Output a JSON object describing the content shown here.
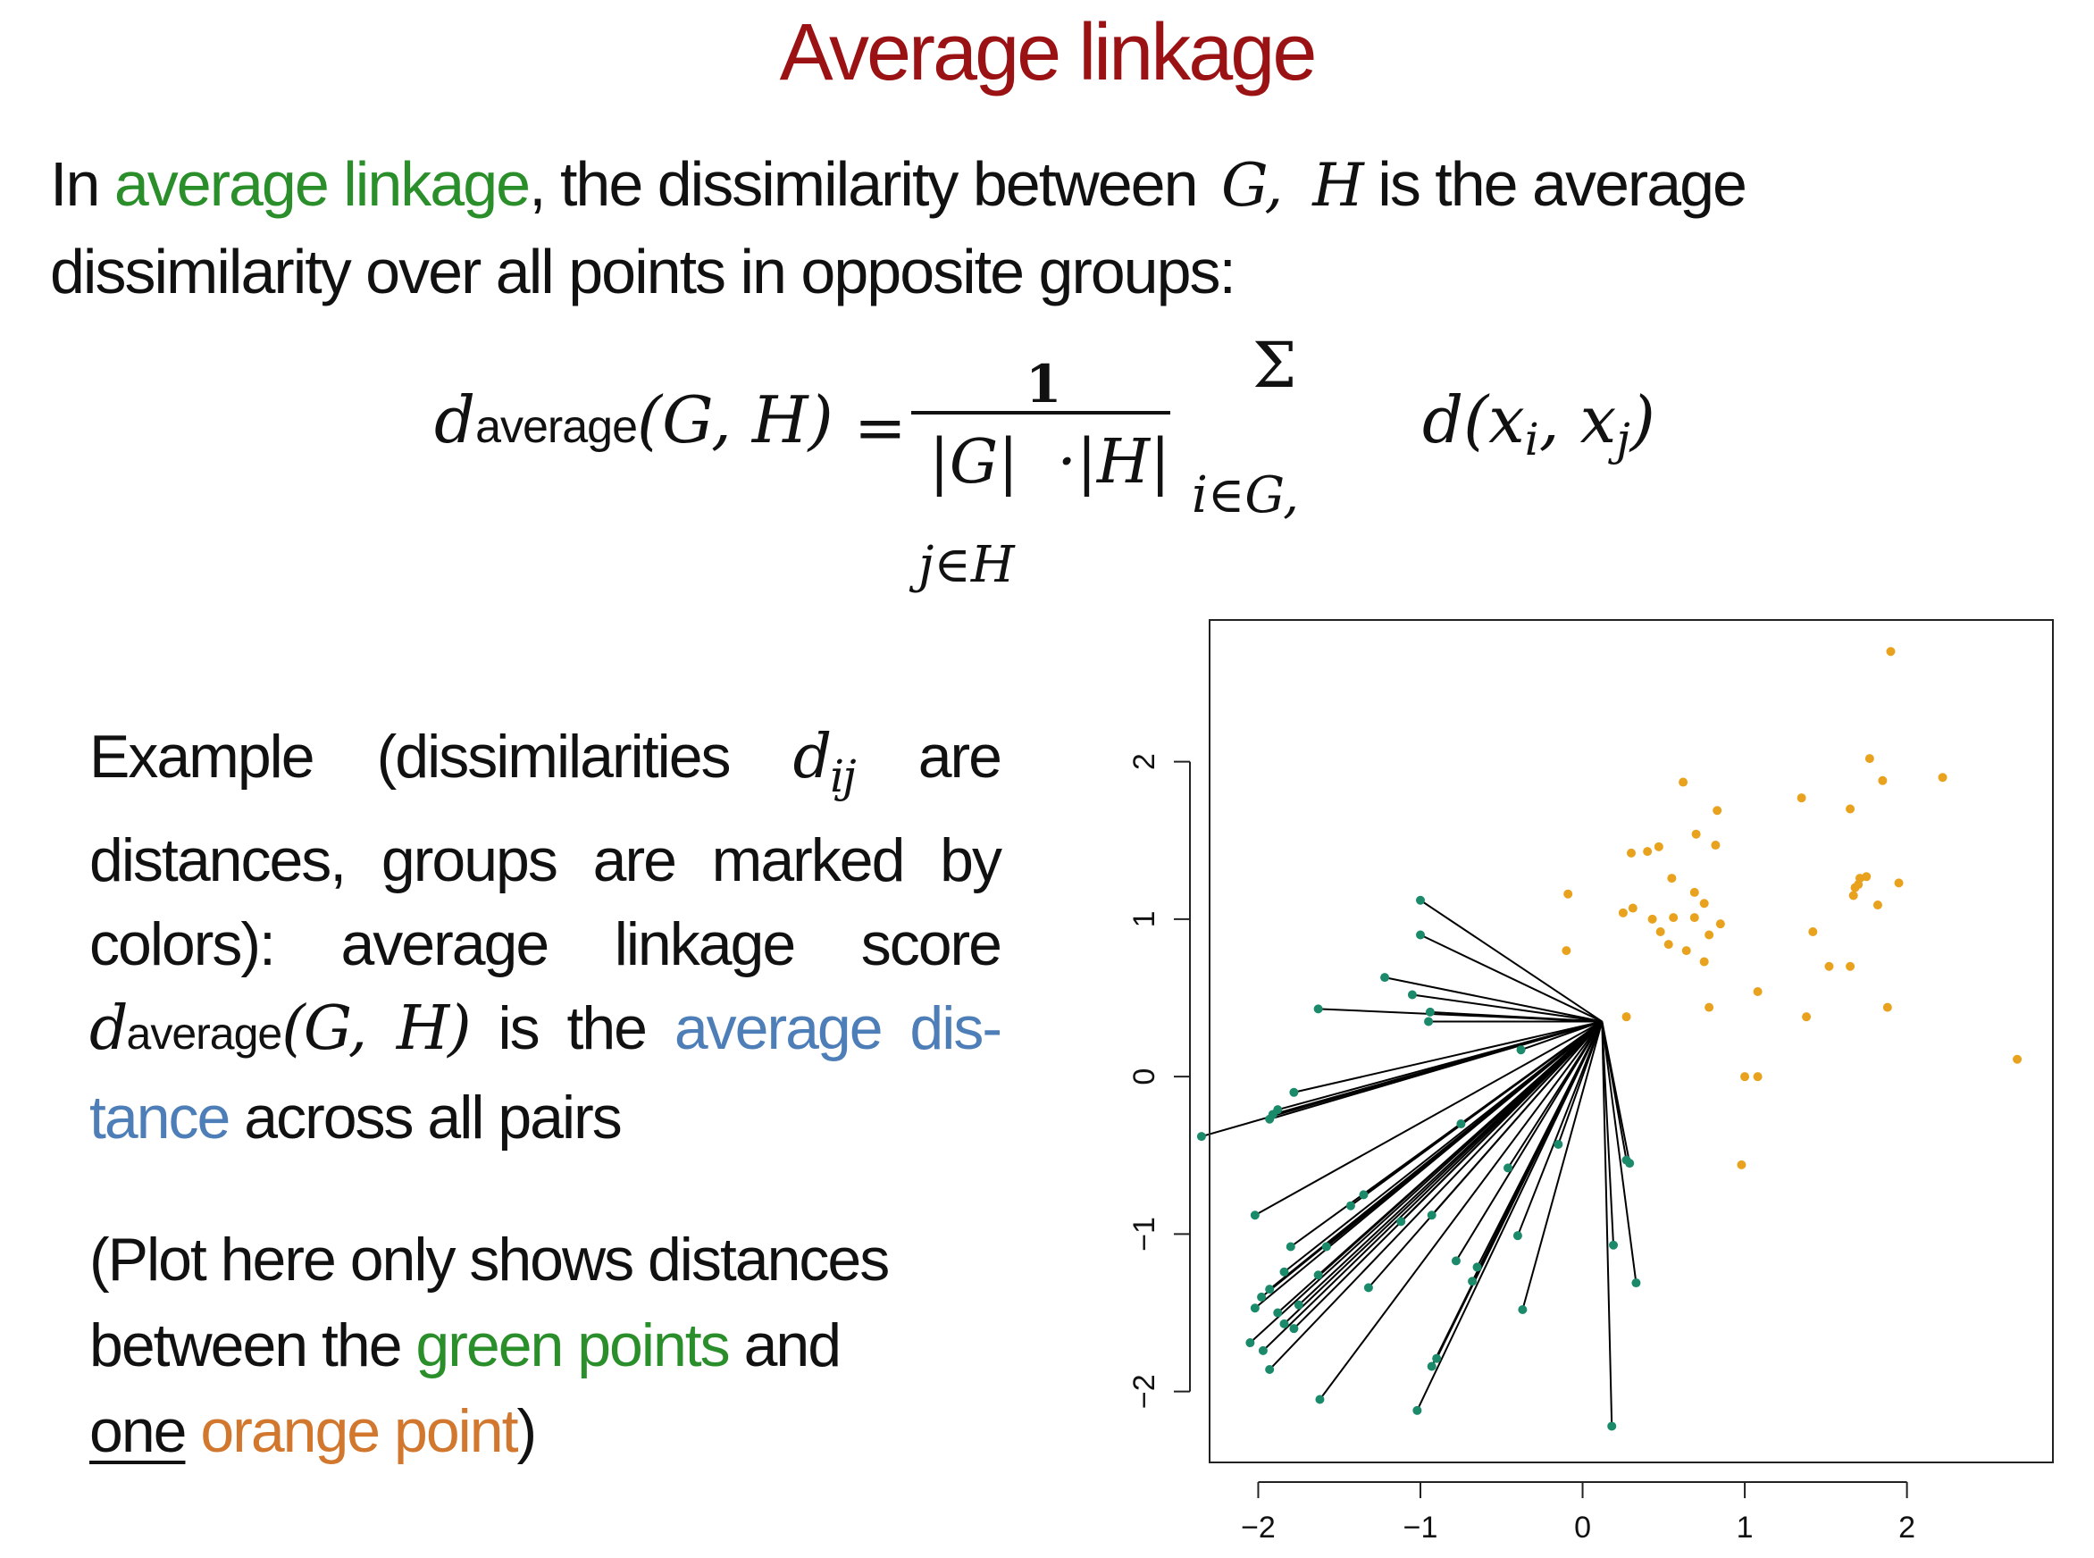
{
  "title": "Average linkage",
  "intro": {
    "p1": "In ",
    "term": "average linkage",
    "p2": ", the dissimilarity between ",
    "var_g": "G,",
    "var_h": "H",
    "p3": " is the average",
    "line2": "dissimilarity over all points in opposite  groups:"
  },
  "formula": {
    "lhs_d": "d",
    "lhs_sub": "average",
    "lhs_args": "(G, H)",
    "equals": "=",
    "numerator": "1",
    "denominator": "|G|  ·|H|",
    "sum_symbol": "Σ",
    "sum_index_i": "i∈G,",
    "sum_index_j": "j∈H",
    "term": "d(x",
    "term_i": "i",
    "term_mid": ", x",
    "term_j": "j",
    "term_close": ")"
  },
  "example": {
    "p1": "Example (dissimilarities ",
    "dij_d": "d",
    "dij_sub": "ij",
    "p2": " are distances, groups are marked by colors): average linkage score ",
    "d": "d",
    "d_sub": "average",
    "args": "(G, H)",
    "p3": " is the ",
    "highlight": "average dis-tance",
    "p4": " across all  pairs"
  },
  "note": {
    "p1": "(Plot here only shows distances between the ",
    "green": "green points",
    "p2": " and ",
    "one": "one",
    "p3": " ",
    "orange": "orange point",
    "p4": ")"
  },
  "colors": {
    "title": "#9b1214",
    "green_text": "#2a8f2a",
    "blue_text": "#4d7eb8",
    "orange_text": "#d2772e",
    "green_point": "#1a8a6a",
    "orange_point": "#e8a21d",
    "line": "#000000"
  },
  "chart_data": {
    "type": "scatter",
    "title": "",
    "xlabel": "",
    "ylabel": "",
    "xlim": [
      -2.3,
      2.9
    ],
    "ylim": [
      -2.45,
      2.9
    ],
    "xticks": [
      -2,
      -1,
      0,
      1,
      2
    ],
    "yticks": [
      -2,
      -1,
      0,
      1,
      2
    ],
    "xtick_labels": [
      "−2",
      "−1",
      "0",
      "1",
      "2"
    ],
    "ytick_labels": [
      "−2",
      "−1",
      "0",
      "1",
      "2"
    ],
    "grid": false,
    "legend": "none",
    "connect_to": [
      0.12,
      0.35
    ],
    "series": [
      {
        "group": "green",
        "points": [
          [
            -1.0,
            1.12
          ],
          [
            -1.0,
            0.9
          ],
          [
            -1.22,
            0.63
          ],
          [
            -1.05,
            0.52
          ],
          [
            -0.94,
            0.41
          ],
          [
            -0.95,
            0.35
          ],
          [
            -1.63,
            0.43
          ],
          [
            -0.38,
            0.17
          ],
          [
            -1.78,
            -0.1
          ],
          [
            -1.88,
            -0.21
          ],
          [
            -1.91,
            -0.24
          ],
          [
            -1.93,
            -0.27
          ],
          [
            -2.35,
            -0.38
          ],
          [
            -0.15,
            -0.43
          ],
          [
            -0.75,
            -0.3
          ],
          [
            -0.46,
            -0.58
          ],
          [
            -1.35,
            -0.75
          ],
          [
            -1.43,
            -0.82
          ],
          [
            -0.93,
            -0.88
          ],
          [
            -1.12,
            -0.92
          ],
          [
            -2.02,
            -0.88
          ],
          [
            0.27,
            -0.53
          ],
          [
            0.29,
            -0.55
          ],
          [
            0.19,
            -1.07
          ],
          [
            0.33,
            -1.31
          ],
          [
            -1.58,
            -1.08
          ],
          [
            -1.8,
            -1.08
          ],
          [
            -1.84,
            -1.24
          ],
          [
            -0.78,
            -1.17
          ],
          [
            -0.65,
            -1.21
          ],
          [
            -0.68,
            -1.3
          ],
          [
            -1.63,
            -1.26
          ],
          [
            -1.93,
            -1.35
          ],
          [
            -1.98,
            -1.4
          ],
          [
            -2.02,
            -1.47
          ],
          [
            -1.75,
            -1.45
          ],
          [
            -1.88,
            -1.5
          ],
          [
            -1.84,
            -1.57
          ],
          [
            -1.32,
            -1.34
          ],
          [
            -0.4,
            -1.01
          ],
          [
            -0.37,
            -1.48
          ],
          [
            -2.05,
            -1.69
          ],
          [
            -1.97,
            -1.74
          ],
          [
            -1.93,
            -1.86
          ],
          [
            -0.9,
            -1.79
          ],
          [
            -0.93,
            -1.84
          ],
          [
            -1.62,
            -2.05
          ],
          [
            -1.02,
            -2.12
          ],
          [
            0.18,
            -2.22
          ],
          [
            -1.78,
            -1.6
          ]
        ]
      },
      {
        "group": "orange",
        "points": [
          [
            1.9,
            2.7
          ],
          [
            0.62,
            1.87
          ],
          [
            1.77,
            2.02
          ],
          [
            1.85,
            1.88
          ],
          [
            2.22,
            1.9
          ],
          [
            1.35,
            1.77
          ],
          [
            0.83,
            1.69
          ],
          [
            1.65,
            1.7
          ],
          [
            0.7,
            1.54
          ],
          [
            0.3,
            1.42
          ],
          [
            0.4,
            1.43
          ],
          [
            0.47,
            1.46
          ],
          [
            0.82,
            1.47
          ],
          [
            0.55,
            1.26
          ],
          [
            1.7,
            1.22
          ],
          [
            1.68,
            1.2
          ],
          [
            1.75,
            1.27
          ],
          [
            1.71,
            1.26
          ],
          [
            1.95,
            1.23
          ],
          [
            -0.09,
            1.16
          ],
          [
            0.69,
            1.17
          ],
          [
            1.67,
            1.15
          ],
          [
            0.25,
            1.04
          ],
          [
            0.31,
            1.07
          ],
          [
            1.82,
            1.09
          ],
          [
            0.75,
            1.1
          ],
          [
            0.43,
            1.0
          ],
          [
            0.56,
            1.01
          ],
          [
            0.69,
            1.01
          ],
          [
            0.85,
            0.97
          ],
          [
            0.48,
            0.92
          ],
          [
            0.78,
            0.9
          ],
          [
            1.42,
            0.92
          ],
          [
            0.53,
            0.84
          ],
          [
            0.64,
            0.8
          ],
          [
            -0.1,
            0.8
          ],
          [
            0.75,
            0.73
          ],
          [
            1.52,
            0.7
          ],
          [
            1.65,
            0.7
          ],
          [
            1.08,
            0.54
          ],
          [
            0.78,
            0.44
          ],
          [
            1.88,
            0.44
          ],
          [
            0.27,
            0.38
          ],
          [
            1.38,
            0.38
          ],
          [
            2.68,
            0.11
          ],
          [
            1.0,
            0.0
          ],
          [
            1.08,
            0.0
          ],
          [
            0.98,
            -0.56
          ]
        ]
      }
    ]
  }
}
